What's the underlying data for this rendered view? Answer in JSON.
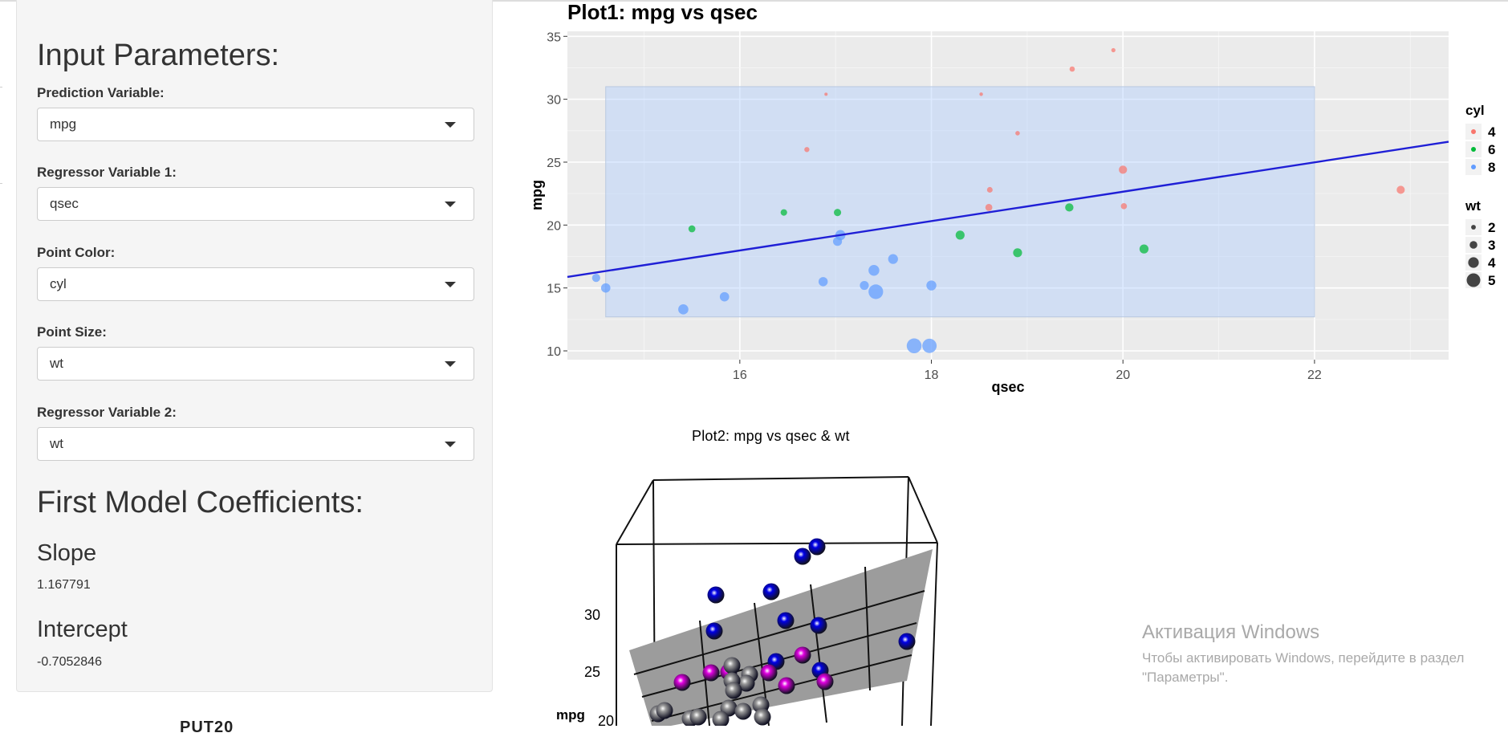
{
  "sidebar": {
    "heading": "Input Parameters:",
    "fields": [
      {
        "label": "Prediction Variable:",
        "value": "mpg"
      },
      {
        "label": "Regressor Variable 1:",
        "value": "qsec"
      },
      {
        "label": "Point Color:",
        "value": "cyl"
      },
      {
        "label": "Point Size:",
        "value": "wt"
      },
      {
        "label": "Regressor Variable 2:",
        "value": "wt"
      }
    ],
    "coef_heading": "First Model Coefficients:",
    "slope_label": "Slope",
    "slope_value": "1.167791",
    "intercept_label": "Intercept",
    "intercept_value": "-0.7052846"
  },
  "below_cutoff_text": "PUT20",
  "plot2": {
    "title": "Plot2: mpg  vs  qsec  &  wt",
    "z_label": "mpg",
    "z_ticks": [
      "30",
      "25",
      "20"
    ],
    "colors": {
      "pink": "#e000e0",
      "blue": "#0000e6",
      "gray": "#9a9a9a",
      "plane": "#9c9c9c"
    }
  },
  "watermark": {
    "title": "Активация Windows",
    "line1": "Чтобы активировать Windows, перейдите в раздел",
    "line2": "\"Параметры\"."
  },
  "chart_data": [
    {
      "type": "scatter",
      "title": "Plot1: mpg  vs  qsec",
      "xlabel": "qsec",
      "ylabel": "mpg",
      "xlim": [
        14.2,
        23.4
      ],
      "ylim": [
        9.3,
        35.4
      ],
      "xticks": [
        16,
        18,
        20,
        22
      ],
      "yticks": [
        10,
        15,
        20,
        25,
        30,
        35
      ],
      "grid": true,
      "background": "#ebebeb",
      "legend_position": "right",
      "fit_line": {
        "slope": 1.167791,
        "intercept": -0.7052846,
        "color": "#1f1fd6"
      },
      "selection_rect": {
        "x": [
          14.6,
          22.0
        ],
        "y": [
          12.7,
          31.0
        ]
      },
      "color_legend": {
        "title": "cyl",
        "entries": [
          {
            "label": "4",
            "color": "#f8766d"
          },
          {
            "label": "6",
            "color": "#00ba38"
          },
          {
            "label": "8",
            "color": "#619cff"
          }
        ]
      },
      "size_legend": {
        "title": "wt",
        "entries": [
          "2",
          "3",
          "4",
          "5"
        ]
      },
      "series": [
        {
          "cyl": "4",
          "points": [
            {
              "x": 18.61,
              "y": 22.8,
              "wt": 2.32
            },
            {
              "x": 20.0,
              "y": 24.4,
              "wt": 3.19
            },
            {
              "x": 22.9,
              "y": 22.8,
              "wt": 3.15
            },
            {
              "x": 19.47,
              "y": 32.4,
              "wt": 2.2
            },
            {
              "x": 18.52,
              "y": 30.4,
              "wt": 1.615
            },
            {
              "x": 19.9,
              "y": 33.9,
              "wt": 1.835
            },
            {
              "x": 20.01,
              "y": 21.5,
              "wt": 2.465
            },
            {
              "x": 18.9,
              "y": 27.3,
              "wt": 1.935
            },
            {
              "x": 16.7,
              "y": 26.0,
              "wt": 2.14
            },
            {
              "x": 16.9,
              "y": 30.4,
              "wt": 1.513
            },
            {
              "x": 18.6,
              "y": 21.4,
              "wt": 2.78
            }
          ]
        },
        {
          "cyl": "6",
          "points": [
            {
              "x": 16.46,
              "y": 21.0,
              "wt": 2.62
            },
            {
              "x": 17.02,
              "y": 21.0,
              "wt": 2.875
            },
            {
              "x": 19.44,
              "y": 21.4,
              "wt": 3.215
            },
            {
              "x": 20.22,
              "y": 18.1,
              "wt": 3.46
            },
            {
              "x": 18.3,
              "y": 19.2,
              "wt": 3.44
            },
            {
              "x": 18.9,
              "y": 17.8,
              "wt": 3.44
            },
            {
              "x": 15.5,
              "y": 19.7,
              "wt": 2.77
            }
          ]
        },
        {
          "cyl": "8",
          "points": [
            {
              "x": 17.02,
              "y": 18.7,
              "wt": 3.44
            },
            {
              "x": 15.84,
              "y": 14.3,
              "wt": 3.57
            },
            {
              "x": 17.4,
              "y": 16.4,
              "wt": 4.07
            },
            {
              "x": 17.6,
              "y": 17.3,
              "wt": 3.73
            },
            {
              "x": 18.0,
              "y": 15.2,
              "wt": 3.78
            },
            {
              "x": 17.98,
              "y": 10.4,
              "wt": 5.25
            },
            {
              "x": 17.82,
              "y": 10.4,
              "wt": 5.424
            },
            {
              "x": 17.42,
              "y": 14.7,
              "wt": 5.345
            },
            {
              "x": 16.87,
              "y": 15.5,
              "wt": 3.52
            },
            {
              "x": 17.3,
              "y": 15.2,
              "wt": 3.435
            },
            {
              "x": 15.41,
              "y": 13.3,
              "wt": 3.84
            },
            {
              "x": 17.05,
              "y": 19.2,
              "wt": 3.845
            },
            {
              "x": 14.5,
              "y": 15.8,
              "wt": 3.17
            },
            {
              "x": 14.6,
              "y": 15.0,
              "wt": 3.57
            }
          ]
        }
      ]
    }
  ]
}
